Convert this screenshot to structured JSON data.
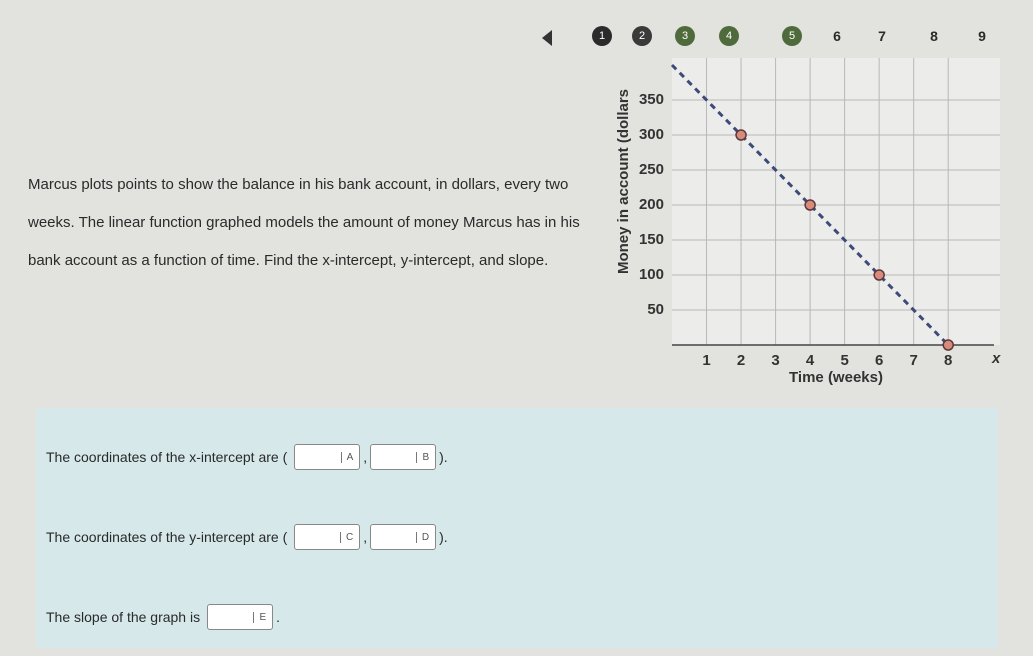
{
  "nav": {
    "steps": [
      "1",
      "2",
      "3",
      "4",
      "5",
      "6",
      "7",
      "8",
      "9"
    ]
  },
  "question": "Marcus plots points to show the balance in his bank account, in dollars, every two weeks. The linear function graphed models the amount of money Marcus has in his bank account as a function of time. Find the x-intercept, y-intercept, and slope.",
  "chart_data": {
    "type": "line",
    "xlabel": "Time (weeks)",
    "xaxis_symbol": "x",
    "ylabel": "Money in account (dollars",
    "line": {
      "x": [
        0,
        2,
        4,
        6,
        8
      ],
      "values": [
        400,
        300,
        200,
        100,
        0
      ],
      "color": "#3d4a7a"
    },
    "points": {
      "x": [
        2,
        4,
        6,
        8
      ],
      "values": [
        300,
        200,
        100,
        0
      ],
      "color": "#d98a7a"
    },
    "xlim": [
      0,
      9.5
    ],
    "ylim": [
      0,
      410
    ],
    "xticks": [
      1,
      2,
      3,
      4,
      5,
      6,
      7,
      8
    ],
    "yticks": [
      50,
      100,
      150,
      200,
      250,
      300,
      350
    ],
    "grid": true
  },
  "answers": [
    {
      "before": "The coordinates of the x-intercept are (",
      "boxes": [
        "A",
        "B"
      ],
      "sep": ",",
      "after": ")."
    },
    {
      "before": "The coordinates of the y-intercept are (",
      "boxes": [
        "C",
        "D"
      ],
      "sep": ",",
      "after": ")."
    },
    {
      "before": "The slope of the graph is",
      "boxes": [
        "E"
      ],
      "sep": "",
      "after": "."
    }
  ]
}
